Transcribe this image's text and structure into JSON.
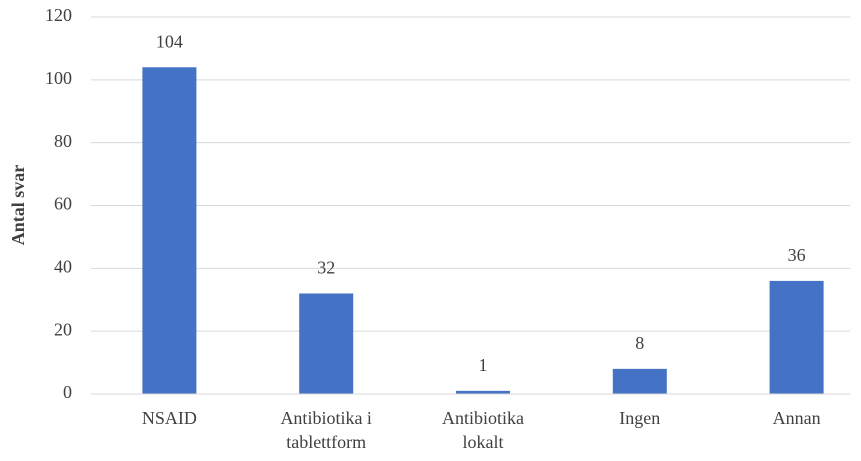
{
  "chart_data": {
    "type": "bar",
    "y_label": "Antal svar",
    "categories": [
      "NSAID",
      "Antibiotika i\ntablettform",
      "Antibiotika\nlokalt",
      "Ingen",
      "Annan"
    ],
    "values": [
      104,
      32,
      1,
      8,
      36
    ],
    "color": "#4472c4",
    "ylim": [
      0,
      120
    ],
    "yticks": [
      0,
      20,
      40,
      60,
      80,
      100,
      120
    ],
    "grid": true
  }
}
